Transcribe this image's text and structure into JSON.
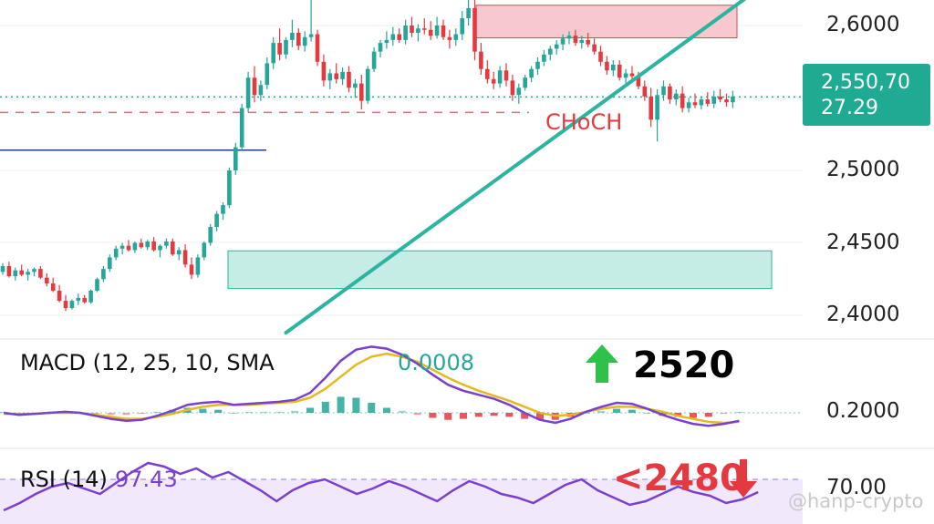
{
  "chart_data": {
    "type": "candlestick",
    "price_axis": {
      "ticks": [
        "2,6000",
        "2,5000",
        "2,4500",
        "2,4000"
      ],
      "tick_values": [
        2.6,
        2.5,
        2.45,
        2.4
      ],
      "range": [
        2.385,
        2.62
      ]
    },
    "last_price": {
      "value": "2,550,70",
      "countdown": "27.29"
    },
    "candles": [
      [
        2.43,
        2.436,
        2.428,
        2.434
      ],
      [
        2.434,
        2.437,
        2.426,
        2.427
      ],
      [
        2.427,
        2.433,
        2.424,
        2.431
      ],
      [
        2.431,
        2.435,
        2.427,
        2.428
      ],
      [
        2.428,
        2.432,
        2.424,
        2.43
      ],
      [
        2.43,
        2.433,
        2.427,
        2.432
      ],
      [
        2.432,
        2.434,
        2.425,
        2.426
      ],
      [
        2.426,
        2.429,
        2.42,
        2.422
      ],
      [
        2.422,
        2.426,
        2.416,
        2.417
      ],
      [
        2.417,
        2.421,
        2.409,
        2.41
      ],
      [
        2.41,
        2.414,
        2.403,
        2.405
      ],
      [
        2.405,
        2.411,
        2.404,
        2.41
      ],
      [
        2.41,
        2.415,
        2.407,
        2.412
      ],
      [
        2.412,
        2.414,
        2.408,
        2.409
      ],
      [
        2.409,
        2.418,
        2.408,
        2.417
      ],
      [
        2.417,
        2.426,
        2.416,
        2.425
      ],
      [
        2.425,
        2.434,
        2.423,
        2.432
      ],
      [
        2.432,
        2.442,
        2.43,
        2.44
      ],
      [
        2.44,
        2.448,
        2.438,
        2.446
      ],
      [
        2.446,
        2.45,
        2.442,
        2.448
      ],
      [
        2.448,
        2.452,
        2.444,
        2.445
      ],
      [
        2.445,
        2.451,
        2.443,
        2.45
      ],
      [
        2.45,
        2.453,
        2.446,
        2.447
      ],
      [
        2.447,
        2.452,
        2.445,
        2.451
      ],
      [
        2.451,
        2.454,
        2.444,
        2.445
      ],
      [
        2.445,
        2.449,
        2.44,
        2.448
      ],
      [
        2.448,
        2.453,
        2.446,
        2.451
      ],
      [
        2.451,
        2.453,
        2.441,
        2.442
      ],
      [
        2.442,
        2.447,
        2.438,
        2.445
      ],
      [
        2.445,
        2.449,
        2.433,
        2.435
      ],
      [
        2.435,
        2.44,
        2.425,
        2.428
      ],
      [
        2.428,
        2.442,
        2.426,
        2.44
      ],
      [
        2.44,
        2.451,
        2.438,
        2.45
      ],
      [
        2.45,
        2.463,
        2.448,
        2.461
      ],
      [
        2.461,
        2.472,
        2.458,
        2.47
      ],
      [
        2.47,
        2.478,
        2.466,
        2.476
      ],
      [
        2.476,
        2.502,
        2.474,
        2.5
      ],
      [
        2.5,
        2.519,
        2.497,
        2.516
      ],
      [
        2.516,
        2.546,
        2.514,
        2.543
      ],
      [
        2.543,
        2.568,
        2.54,
        2.564
      ],
      [
        2.564,
        2.572,
        2.547,
        2.552
      ],
      [
        2.552,
        2.562,
        2.548,
        2.559
      ],
      [
        2.559,
        2.578,
        2.556,
        2.574
      ],
      [
        2.574,
        2.592,
        2.57,
        2.588
      ],
      [
        2.588,
        2.598,
        2.576,
        2.58
      ],
      [
        2.58,
        2.592,
        2.577,
        2.59
      ],
      [
        2.59,
        2.604,
        2.585,
        2.595
      ],
      [
        2.595,
        2.598,
        2.583,
        2.586
      ],
      [
        2.586,
        2.596,
        2.582,
        2.592
      ],
      [
        2.592,
        2.624,
        2.589,
        2.594
      ],
      [
        2.594,
        2.597,
        2.572,
        2.575
      ],
      [
        2.575,
        2.58,
        2.558,
        2.562
      ],
      [
        2.562,
        2.57,
        2.556,
        2.567
      ],
      [
        2.567,
        2.574,
        2.56,
        2.563
      ],
      [
        2.563,
        2.571,
        2.559,
        2.568
      ],
      [
        2.568,
        2.572,
        2.554,
        2.557
      ],
      [
        2.557,
        2.563,
        2.55,
        2.56
      ],
      [
        2.56,
        2.566,
        2.542,
        2.548
      ],
      [
        2.548,
        2.572,
        2.546,
        2.57
      ],
      [
        2.57,
        2.585,
        2.568,
        2.582
      ],
      [
        2.582,
        2.59,
        2.578,
        2.588
      ],
      [
        2.588,
        2.596,
        2.584,
        2.59
      ],
      [
        2.59,
        2.599,
        2.586,
        2.594
      ],
      [
        2.594,
        2.598,
        2.588,
        2.59
      ],
      [
        2.59,
        2.604,
        2.587,
        2.6
      ],
      [
        2.6,
        2.606,
        2.592,
        2.595
      ],
      [
        2.595,
        2.601,
        2.589,
        2.598
      ],
      [
        2.598,
        2.605,
        2.594,
        2.597
      ],
      [
        2.597,
        2.603,
        2.59,
        2.593
      ],
      [
        2.593,
        2.606,
        2.591,
        2.6
      ],
      [
        2.6,
        2.604,
        2.59,
        2.592
      ],
      [
        2.592,
        2.597,
        2.584,
        2.59
      ],
      [
        2.59,
        2.598,
        2.586,
        2.594
      ],
      [
        2.594,
        2.61,
        2.59,
        2.605
      ],
      [
        2.605,
        2.622,
        2.6,
        2.612
      ],
      [
        2.612,
        2.618,
        2.576,
        2.582
      ],
      [
        2.582,
        2.588,
        2.566,
        2.57
      ],
      [
        2.57,
        2.576,
        2.56,
        2.563
      ],
      [
        2.563,
        2.568,
        2.556,
        2.56
      ],
      [
        2.56,
        2.572,
        2.557,
        2.569
      ],
      [
        2.569,
        2.574,
        2.558,
        2.562
      ],
      [
        2.562,
        2.566,
        2.548,
        2.552
      ],
      [
        2.552,
        2.56,
        2.546,
        2.557
      ],
      [
        2.557,
        2.566,
        2.555,
        2.564
      ],
      [
        2.564,
        2.572,
        2.561,
        2.57
      ],
      [
        2.57,
        2.578,
        2.566,
        2.575
      ],
      [
        2.575,
        2.583,
        2.572,
        2.58
      ],
      [
        2.58,
        2.586,
        2.576,
        2.584
      ],
      [
        2.584,
        2.59,
        2.58,
        2.587
      ],
      [
        2.587,
        2.594,
        2.583,
        2.591
      ],
      [
        2.591,
        2.596,
        2.587,
        2.593
      ],
      [
        2.593,
        2.597,
        2.586,
        2.588
      ],
      [
        2.588,
        2.593,
        2.584,
        2.59
      ],
      [
        2.59,
        2.595,
        2.585,
        2.587
      ],
      [
        2.587,
        2.591,
        2.58,
        2.582
      ],
      [
        2.582,
        2.586,
        2.572,
        2.575
      ],
      [
        2.575,
        2.579,
        2.566,
        2.569
      ],
      [
        2.569,
        2.576,
        2.565,
        2.573
      ],
      [
        2.573,
        2.576,
        2.562,
        2.564
      ],
      [
        2.564,
        2.57,
        2.559,
        2.567
      ],
      [
        2.567,
        2.572,
        2.562,
        2.565
      ],
      [
        2.565,
        2.568,
        2.556,
        2.558
      ],
      [
        2.558,
        2.562,
        2.548,
        2.551
      ],
      [
        2.551,
        2.557,
        2.53,
        2.535
      ],
      [
        2.535,
        2.556,
        2.52,
        2.552
      ],
      [
        2.552,
        2.562,
        2.548,
        2.558
      ],
      [
        2.558,
        2.56,
        2.546,
        2.549
      ],
      [
        2.549,
        2.556,
        2.545,
        2.553
      ],
      [
        2.553,
        2.558,
        2.54,
        2.543
      ],
      [
        2.543,
        2.55,
        2.54,
        2.547
      ],
      [
        2.547,
        2.553,
        2.543,
        2.545
      ],
      [
        2.545,
        2.551,
        2.542,
        2.549
      ],
      [
        2.549,
        2.554,
        2.544,
        2.546
      ],
      [
        2.546,
        2.555,
        2.543,
        2.551
      ],
      [
        2.551,
        2.556,
        2.547,
        2.549
      ],
      [
        2.549,
        2.553,
        2.544,
        2.547
      ],
      [
        2.547,
        2.555,
        2.543,
        2.551
      ]
    ],
    "levels": [
      {
        "name": "blue-support-line",
        "value": 2.514
      },
      {
        "name": "dashed-red-line",
        "value": 2.54
      },
      {
        "name": "dotted-last-price-line",
        "value": 2.5507
      }
    ],
    "zones": [
      {
        "name": "supply-zone",
        "from": 2.5915,
        "to": 2.614,
        "color": "#f7c9cf"
      },
      {
        "name": "demand-zone",
        "from": 2.4185,
        "to": 2.4445,
        "color": "#c6ece6"
      }
    ],
    "trendline": {
      "from": [
        45,
        2.388
      ],
      "to": [
        120,
        2.625
      ]
    },
    "annotation": "CHoCH",
    "macd": {
      "label": "MACD (12, 25, 10, SMA",
      "value": "0.0008",
      "tick": "0.2000",
      "macd_line": [
        0,
        -0.2,
        -0.1,
        0,
        0.1,
        0,
        -0.3,
        -0.6,
        -0.8,
        -0.7,
        -0.3,
        0.2,
        0.8,
        1.0,
        1.1,
        0.8,
        0.9,
        1.0,
        1.1,
        1.3,
        2.0,
        3.5,
        5.2,
        6.3,
        6.6,
        6.4,
        5.8,
        4.9,
        3.8,
        2.8,
        2.2,
        1.8,
        1.4,
        0.8,
        0.0,
        -0.7,
        -1.0,
        -0.6,
        0.1,
        0.6,
        1.0,
        0.9,
        0.4,
        -0.2,
        -0.7,
        -1.1,
        -1.3,
        -1.1,
        -0.8
      ],
      "signal_line": [
        -0.1,
        -0.1,
        -0.1,
        0,
        0,
        0,
        -0.2,
        -0.4,
        -0.6,
        -0.6,
        -0.4,
        -0.1,
        0.3,
        0.6,
        0.8,
        0.8,
        0.8,
        0.9,
        1.0,
        1.1,
        1.5,
        2.4,
        3.6,
        4.8,
        5.6,
        5.9,
        5.6,
        5.1,
        4.3,
        3.5,
        2.8,
        2.2,
        1.7,
        1.2,
        0.6,
        0.0,
        -0.3,
        -0.2,
        0.1,
        0.4,
        0.6,
        0.6,
        0.4,
        0.1,
        -0.3,
        -0.6,
        -0.9,
        -1.0,
        -0.9
      ],
      "histogram": [
        0.1,
        -0.1,
        0,
        0,
        0.1,
        0,
        -0.1,
        -0.2,
        -0.2,
        -0.1,
        0.1,
        0.3,
        0.5,
        0.4,
        0.3,
        0,
        0.1,
        0.1,
        0.1,
        0.2,
        0.5,
        1.1,
        1.6,
        1.5,
        1.0,
        0.5,
        0.2,
        -0.2,
        -0.5,
        -0.7,
        -0.6,
        -0.4,
        -0.3,
        -0.4,
        -0.6,
        -0.7,
        -0.7,
        -0.4,
        0,
        0.2,
        0.4,
        0.3,
        0,
        -0.3,
        -0.4,
        -0.5,
        -0.4,
        -0.1,
        0.1
      ]
    },
    "rsi": {
      "label": "RSI (14)",
      "value": "97.43",
      "tick": "70.00",
      "series": [
        40,
        48,
        58,
        66,
        70,
        64,
        58,
        70,
        82,
        92,
        88,
        80,
        86,
        76,
        82,
        72,
        62,
        50,
        62,
        70,
        74,
        66,
        58,
        64,
        72,
        66,
        58,
        50,
        62,
        72,
        66,
        58,
        54,
        48,
        58,
        68,
        74,
        62,
        54,
        46,
        50,
        58,
        66,
        60,
        56,
        48,
        52,
        60
      ]
    },
    "callouts": {
      "up_value": "2520",
      "down_value": "<2480"
    },
    "watermark": "@hanp-crypto",
    "colors": {
      "bull": "#26a69a",
      "bear": "#e53940",
      "trendline": "#2bb5a0",
      "macd_line": "#7b3fd0",
      "signal_line": "#e6b91d",
      "rsi": "#7b3fd0",
      "annotation": "#e53940",
      "blue_line": "#1f3f8a"
    }
  }
}
